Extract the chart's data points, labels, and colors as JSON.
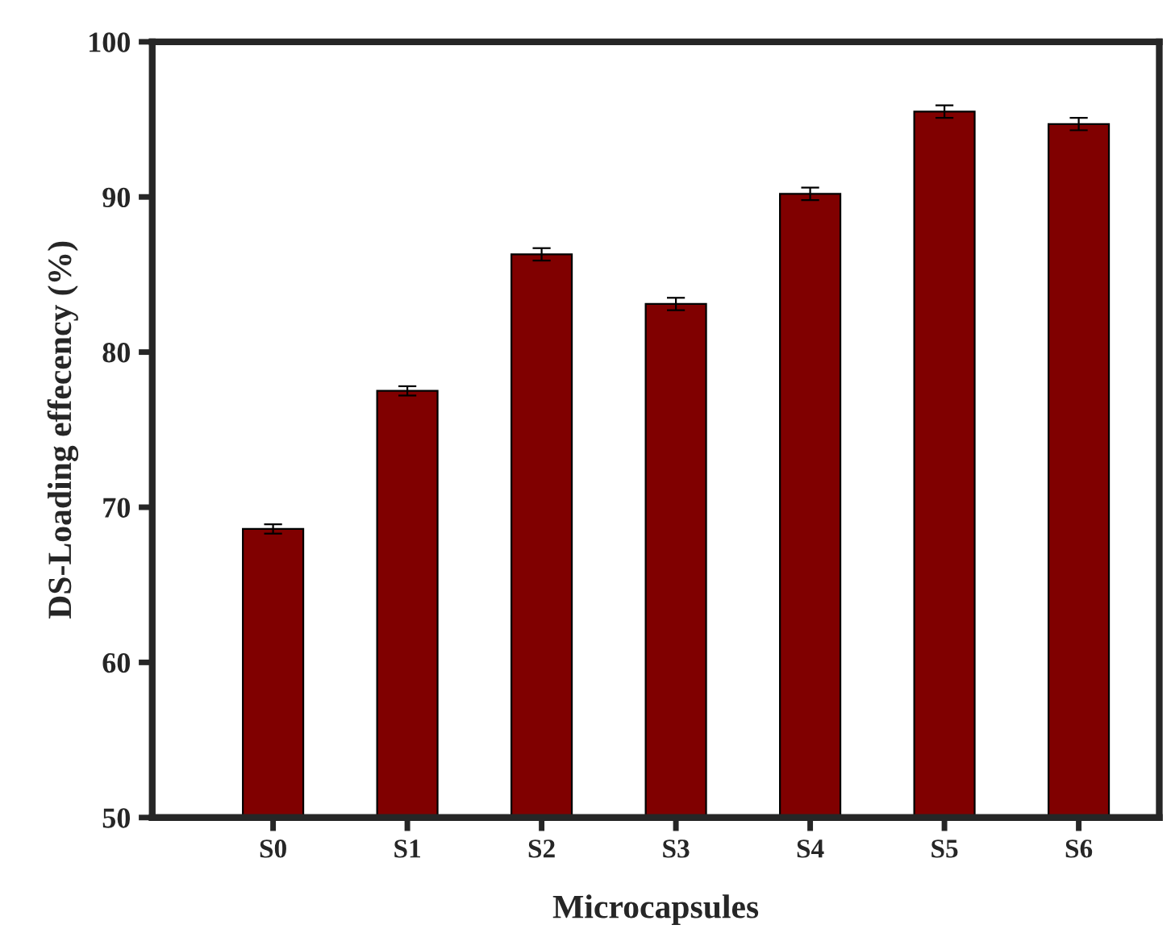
{
  "chart_data": {
    "type": "bar",
    "xlabel": "Microcapsules",
    "ylabel": "DS-Loading effecency (%)",
    "categories": [
      "S0",
      "S1",
      "S2",
      "S3",
      "S4",
      "S5",
      "S6"
    ],
    "values": [
      68.6,
      77.5,
      86.3,
      83.1,
      90.2,
      95.5,
      94.7
    ],
    "errors": [
      0.3,
      0.3,
      0.4,
      0.4,
      0.4,
      0.4,
      0.4
    ],
    "color": "#800000",
    "ylim": [
      50,
      100
    ],
    "yticks": [
      50,
      60,
      70,
      80,
      90,
      100
    ],
    "grid": false
  }
}
